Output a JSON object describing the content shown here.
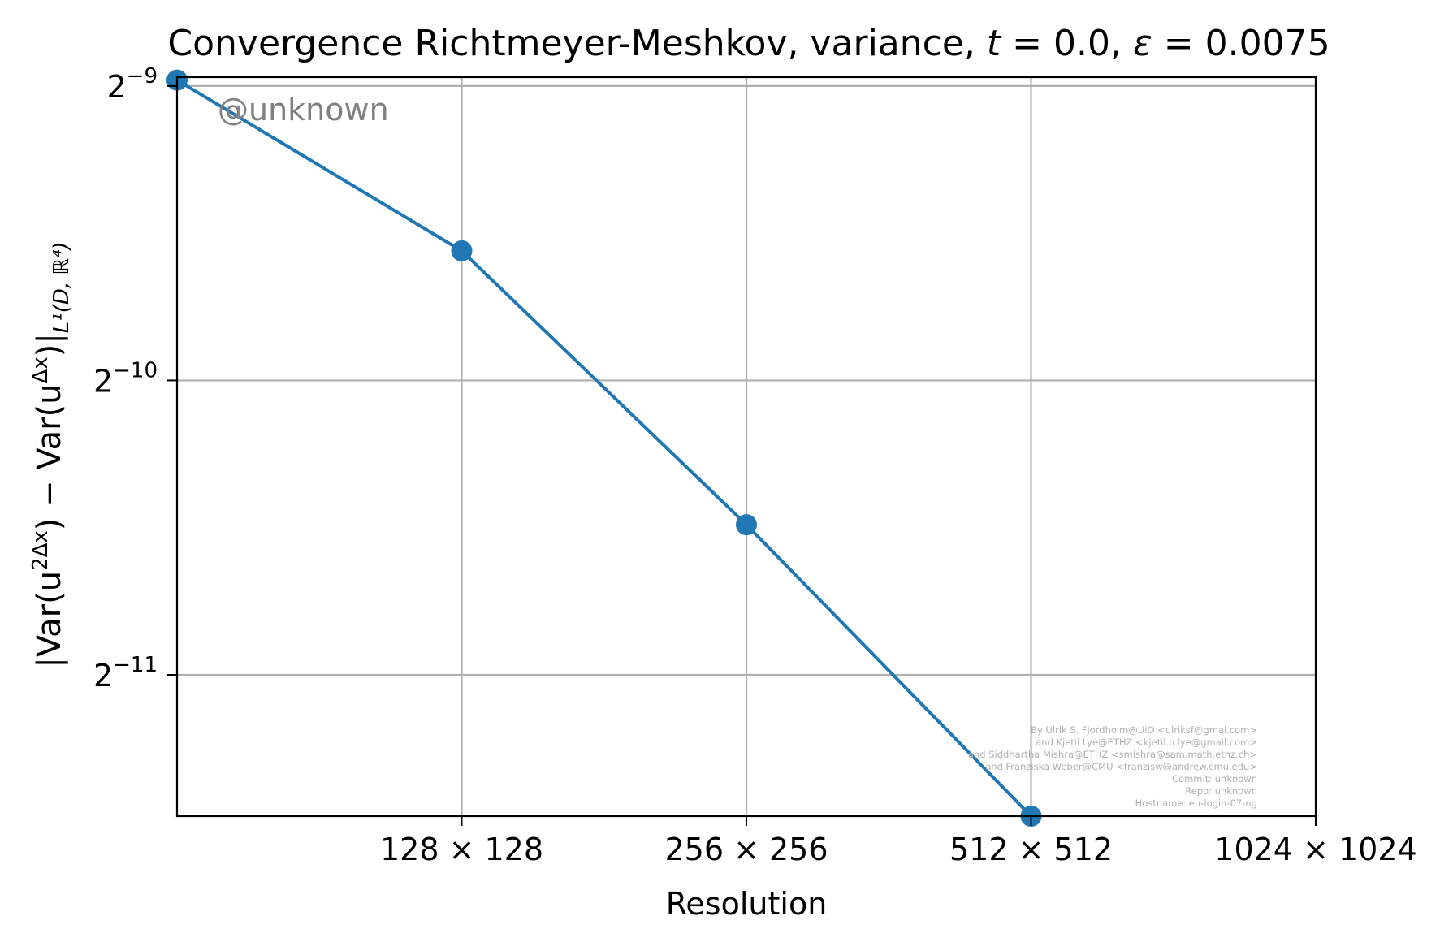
{
  "chart_data": {
    "type": "line",
    "title_prefix": "Convergence Richtmeyer-Meshkov, variance,",
    "title_t_var": "t",
    "title_t_eq": "= 0.0,",
    "title_eps_var": "ε",
    "title_eps_eq": "= 0.0075",
    "xlabel": "Resolution",
    "ylabel_main": "|Var(u",
    "ylabel_sup1": "2Δx",
    "ylabel_mid": ") − Var(u",
    "ylabel_sup2": "Δx",
    "ylabel_end": ")|",
    "ylabel_sub": "L¹(D, ℝ⁴)",
    "x_ticks": [
      {
        "value": 128,
        "label": "128 × 128"
      },
      {
        "value": 256,
        "label": "256 × 256"
      },
      {
        "value": 512,
        "label": "512 × 512"
      },
      {
        "value": 1024,
        "label": "1024 × 1024"
      }
    ],
    "y_ticks": [
      {
        "exp": -9,
        "base": "2",
        "sup": "−9"
      },
      {
        "exp": -10,
        "base": "2",
        "sup": "−10"
      },
      {
        "exp": -11,
        "base": "2",
        "sup": "−11"
      }
    ],
    "xlim_log2": [
      6,
      10
    ],
    "ylim_log2": [
      -11.48,
      -8.97
    ],
    "series": [
      {
        "color": "#1f77b4",
        "x": [
          64,
          128,
          256,
          512
        ],
        "y_log2": [
          -8.98,
          -9.56,
          -10.49,
          -11.48
        ]
      }
    ],
    "grid": true,
    "watermark": "@unknown",
    "credits": [
      "By Ulrik S. Fjordholm@UiO <ulriksf@gmal.com>",
      "and Kjetil Lye@ETHZ <kjetil.o.lye@gmail.com>",
      "and Siddhartha Mishra@ETHZ <smishra@sam.math.ethz.ch>",
      "and Franziska Weber@CMU <franzisw@andrew.cmu.edu>",
      "Commit: unknown",
      "Repo: unknown",
      "Hostname: eu-login-07-ng"
    ]
  }
}
